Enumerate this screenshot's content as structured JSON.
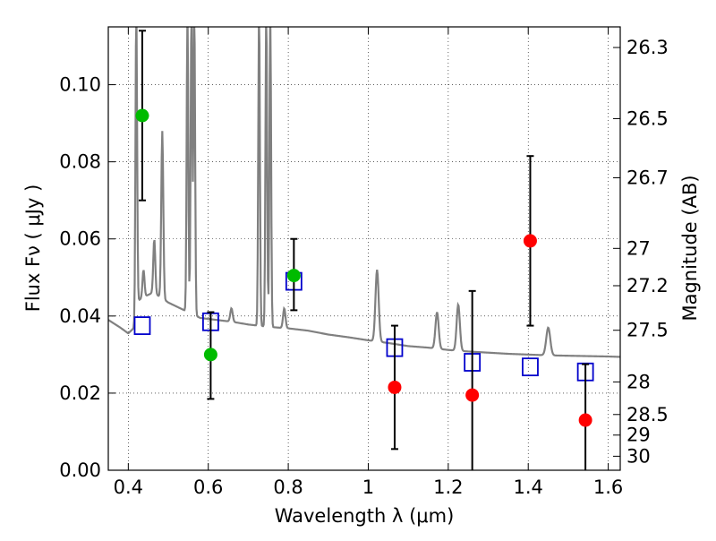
{
  "chart_data": {
    "type": "scatter",
    "xlabel": "Wavelength  λ (μm)",
    "ylabel": "Flux  Fν  ( μJy )",
    "ylabel_right": "Magnitude (AB)",
    "xlim": [
      0.35,
      1.63
    ],
    "ylim": [
      0.0,
      0.115
    ],
    "grid": true,
    "x_ticks": [
      {
        "value": 0.4,
        "label": "0.4"
      },
      {
        "value": 0.6,
        "label": "0.6"
      },
      {
        "value": 0.8,
        "label": "0.8"
      },
      {
        "value": 1.0,
        "label": "1"
      },
      {
        "value": 1.2,
        "label": "1.2"
      },
      {
        "value": 1.4,
        "label": "1.4"
      },
      {
        "value": 1.6,
        "label": "1.6"
      }
    ],
    "y_ticks": [
      {
        "value": 0.0,
        "label": "0.00"
      },
      {
        "value": 0.02,
        "label": "0.02"
      },
      {
        "value": 0.04,
        "label": "0.04"
      },
      {
        "value": 0.06,
        "label": "0.06"
      },
      {
        "value": 0.08,
        "label": "0.08"
      },
      {
        "value": 0.1,
        "label": "0.10"
      }
    ],
    "right_ticks": [
      {
        "mag": 26.3,
        "label": "26.3"
      },
      {
        "mag": 26.5,
        "label": "26.5"
      },
      {
        "mag": 26.7,
        "label": "26.7"
      },
      {
        "mag": 27.0,
        "label": "27"
      },
      {
        "mag": 27.2,
        "label": "27.2"
      },
      {
        "mag": 27.5,
        "label": "27.5"
      },
      {
        "mag": 28.0,
        "label": "28"
      },
      {
        "mag": 28.5,
        "label": "28.5"
      },
      {
        "mag": 29.0,
        "label": "29"
      },
      {
        "mag": 30.0,
        "label": "30"
      }
    ],
    "spectrum": {
      "color": "#808080",
      "continuum": [
        [
          0.35,
          0.039
        ],
        [
          0.38,
          0.037
        ],
        [
          0.4,
          0.0355
        ],
        [
          0.415,
          0.037
        ],
        [
          0.425,
          0.044
        ],
        [
          0.44,
          0.045
        ],
        [
          0.46,
          0.046
        ],
        [
          0.48,
          0.045
        ],
        [
          0.5,
          0.0435
        ],
        [
          0.54,
          0.0415
        ],
        [
          0.58,
          0.0395
        ],
        [
          0.62,
          0.039
        ],
        [
          0.66,
          0.0385
        ],
        [
          0.7,
          0.0378
        ],
        [
          0.75,
          0.0372
        ],
        [
          0.8,
          0.0368
        ],
        [
          0.85,
          0.0362
        ],
        [
          0.9,
          0.0352
        ],
        [
          0.95,
          0.0345
        ],
        [
          1.0,
          0.0337
        ],
        [
          1.05,
          0.033
        ],
        [
          1.1,
          0.0322
        ],
        [
          1.15,
          0.0318
        ],
        [
          1.2,
          0.0312
        ],
        [
          1.25,
          0.0308
        ],
        [
          1.3,
          0.0305
        ],
        [
          1.35,
          0.0302
        ],
        [
          1.4,
          0.03
        ],
        [
          1.45,
          0.0298
        ],
        [
          1.5,
          0.0297
        ],
        [
          1.55,
          0.0296
        ],
        [
          1.6,
          0.0295
        ],
        [
          1.63,
          0.0294
        ]
      ],
      "lines": [
        {
          "x": 0.42,
          "peak": 0.12,
          "w": 0.002
        },
        {
          "x": 0.465,
          "peak": 0.06,
          "w": 0.0025
        },
        {
          "x": 0.485,
          "peak": 0.088,
          "w": 0.0025
        },
        {
          "x": 0.438,
          "peak": 0.052,
          "w": 0.0025
        },
        {
          "x": 0.548,
          "peak": 0.12,
          "w": 0.002
        },
        {
          "x": 0.558,
          "peak": 0.12,
          "w": 0.002
        },
        {
          "x": 0.565,
          "peak": 0.12,
          "w": 0.002
        },
        {
          "x": 0.658,
          "peak": 0.042,
          "w": 0.003
        },
        {
          "x": 0.727,
          "peak": 0.12,
          "w": 0.002
        },
        {
          "x": 0.745,
          "peak": 0.12,
          "w": 0.002
        },
        {
          "x": 0.755,
          "peak": 0.12,
          "w": 0.002
        },
        {
          "x": 0.79,
          "peak": 0.042,
          "w": 0.003
        },
        {
          "x": 1.022,
          "peak": 0.052,
          "w": 0.004
        },
        {
          "x": 1.172,
          "peak": 0.041,
          "w": 0.004
        },
        {
          "x": 1.225,
          "peak": 0.043,
          "w": 0.004
        },
        {
          "x": 1.45,
          "peak": 0.037,
          "w": 0.005
        }
      ]
    },
    "series": [
      {
        "marker": "circle",
        "color": "#00bb00",
        "points": [
          {
            "x": 0.435,
            "y": 0.092,
            "err_lo": 0.07,
            "err_hi": 0.114
          },
          {
            "x": 0.606,
            "y": 0.03,
            "err_lo": 0.0185,
            "err_hi": 0.041
          },
          {
            "x": 0.814,
            "y": 0.0505,
            "err_lo": 0.0415,
            "err_hi": 0.06
          }
        ]
      },
      {
        "marker": "circle",
        "color": "#ff0000",
        "points": [
          {
            "x": 1.066,
            "y": 0.0215,
            "err_lo": 0.0055,
            "err_hi": 0.0375
          },
          {
            "x": 1.26,
            "y": 0.0195,
            "err_lo": 0.0,
            "err_hi": 0.0465
          },
          {
            "x": 1.405,
            "y": 0.0595,
            "err_lo": 0.0375,
            "err_hi": 0.0815
          },
          {
            "x": 1.543,
            "y": 0.013,
            "err_lo": 0.0,
            "err_hi": 0.0275
          }
        ]
      },
      {
        "marker": "square",
        "color": "#0000cc",
        "points": [
          {
            "x": 0.435,
            "y": 0.0375
          },
          {
            "x": 0.606,
            "y": 0.0385
          },
          {
            "x": 0.814,
            "y": 0.049
          },
          {
            "x": 1.066,
            "y": 0.0318
          },
          {
            "x": 1.26,
            "y": 0.028
          },
          {
            "x": 1.405,
            "y": 0.0268
          },
          {
            "x": 1.543,
            "y": 0.0255
          }
        ]
      }
    ]
  }
}
